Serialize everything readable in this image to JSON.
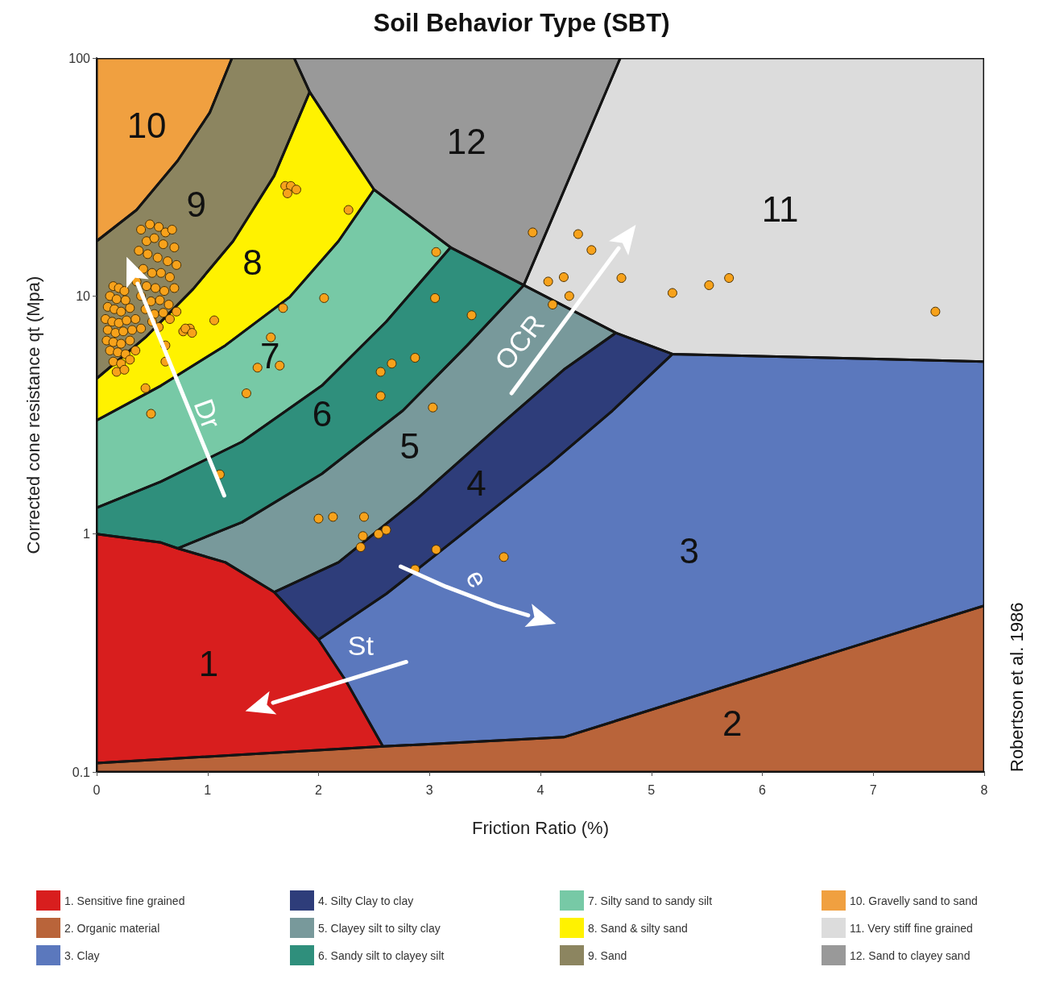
{
  "chart_data": {
    "type": "scatter",
    "title": "Soil Behavior Type (SBT)",
    "xlabel": "Friction Ratio (%)",
    "ylabel": "Corrected cone resistance qt (Mpa)",
    "xlim": [
      0,
      8
    ],
    "xticks": [
      0,
      1,
      2,
      3,
      4,
      5,
      6,
      7,
      8
    ],
    "ylim": [
      0.1,
      100
    ],
    "yticks": [
      0.1,
      1,
      10,
      100
    ],
    "log": "y",
    "grid": false,
    "legend": "bottom",
    "series": [
      {
        "name": "1. Sensitive fine grained",
        "type": "area",
        "color": "#d81e1e",
        "x": [
          0,
          0.58,
          0.73,
          1.16,
          1.6,
          2.0,
          2.25,
          2.58,
          0
        ],
        "values": [
          1,
          0.92,
          0.87,
          0.76,
          0.57,
          0.36,
          0.24,
          0.128,
          0.109
        ]
      },
      {
        "name": "2. Organic material",
        "type": "area",
        "color": "#b9643a",
        "x": [
          0,
          2.58,
          4.21,
          8,
          8,
          0
        ],
        "values": [
          0.109,
          0.128,
          0.14,
          0.5,
          0.1,
          0.1
        ]
      },
      {
        "name": "3. Clay",
        "type": "area",
        "color": "#5b78bd",
        "x": [
          2.0,
          2.61,
          3.34,
          4.07,
          4.65,
          5.19,
          8,
          8,
          4.21,
          2.58,
          2.25
        ],
        "values": [
          0.36,
          0.56,
          1.04,
          1.94,
          3.3,
          5.7,
          5.3,
          0.5,
          0.14,
          0.128,
          0.24
        ]
      },
      {
        "name": "4. Silty Clay to clay",
        "type": "area",
        "color": "#2e3d7a",
        "x": [
          1.6,
          2.18,
          2.9,
          3.63,
          4.21,
          4.68,
          5.19,
          4.65,
          4.07,
          3.34,
          2.61,
          2.0
        ],
        "values": [
          0.57,
          0.76,
          1.42,
          2.85,
          4.9,
          7.0,
          5.7,
          3.3,
          1.94,
          1.04,
          0.56,
          0.36
        ]
      },
      {
        "name": "5. Clayey silt to silty clay",
        "type": "area",
        "color": "#78999b",
        "x": [
          0.73,
          1.31,
          2.03,
          2.76,
          3.34,
          3.85,
          4.68,
          4.21,
          3.63,
          2.9,
          2.18,
          1.6,
          1.16
        ],
        "values": [
          0.87,
          1.12,
          1.79,
          3.3,
          6.2,
          11.1,
          7.0,
          4.9,
          2.85,
          1.42,
          0.76,
          0.57,
          0.76
        ]
      },
      {
        "name": "6. Sandy silt to clayey silt",
        "type": "area",
        "color": "#2f8f7c",
        "x": [
          0,
          0.58,
          1.31,
          2.03,
          2.61,
          3.19,
          3.85,
          3.34,
          2.76,
          2.03,
          1.31,
          0.73,
          0.58,
          0
        ],
        "values": [
          1.29,
          1.66,
          2.44,
          4.2,
          7.8,
          16,
          11.1,
          6.2,
          3.3,
          1.79,
          1.12,
          0.87,
          0.92,
          1
        ]
      },
      {
        "name": "7. Silty sand to sandy silt",
        "type": "area",
        "color": "#77c9a6",
        "x": [
          0,
          0.58,
          1.16,
          1.74,
          2.18,
          2.5,
          3.19,
          2.61,
          2.03,
          1.31,
          0.58,
          0
        ],
        "values": [
          3.0,
          4.2,
          6.2,
          9.9,
          17,
          28,
          16,
          7.8,
          4.2,
          2.44,
          1.66,
          1.29
        ]
      },
      {
        "name": "8. Sand & silty sand",
        "type": "area",
        "color": "#fff200",
        "x": [
          0,
          0.44,
          0.87,
          1.23,
          1.6,
          1.92,
          2.18,
          2.5,
          2.18,
          1.74,
          1.16,
          0.58,
          0
        ],
        "values": [
          4.5,
          6.7,
          10.7,
          17,
          32,
          72,
          47,
          28,
          17,
          9.9,
          6.2,
          4.2,
          3.0
        ]
      },
      {
        "name": "9. Sand",
        "type": "area",
        "color": "#8c8560",
        "x": [
          0,
          0.36,
          0.73,
          1.02,
          1.22,
          1.78,
          1.92,
          1.6,
          1.23,
          0.87,
          0.44,
          0
        ],
        "values": [
          17,
          23,
          37,
          59,
          100,
          100,
          72,
          32,
          17,
          10.7,
          6.7,
          4.5
        ]
      },
      {
        "name": "10. Gravelly sand to sand",
        "type": "area",
        "color": "#f0a040",
        "x": [
          0,
          1.22,
          1.02,
          0.73,
          0.36,
          0
        ],
        "values": [
          100,
          100,
          59,
          37,
          23,
          17
        ]
      },
      {
        "name": "11. Very stiff fine grained",
        "type": "area",
        "color": "#dcdcdc",
        "x": [
          4.72,
          8,
          8,
          5.19,
          4.68,
          3.85
        ],
        "values": [
          100,
          100,
          5.3,
          5.7,
          7.0,
          11.1
        ]
      },
      {
        "name": "12. Sand to clayey sand",
        "type": "area",
        "color": "#999999",
        "x": [
          1.78,
          4.72,
          3.85,
          3.19,
          2.5,
          2.18,
          1.92
        ],
        "values": [
          100,
          100,
          11.1,
          16,
          28,
          47,
          72
        ]
      },
      {
        "color": "#f7a21b",
        "marker": "circle",
        "x": [
          1.7,
          1.75,
          1.8,
          1.72,
          2.27,
          3.06,
          3.05,
          3.38,
          2.05,
          1.68,
          1.06,
          1.57,
          1.65,
          1.45,
          1.35,
          2.56,
          2.66,
          2.87,
          2.56,
          3.03,
          1.11,
          0.49,
          0.44,
          0.84,
          0.78,
          0.62,
          0.62,
          2.0,
          2.13,
          2.41,
          2.4,
          2.54,
          2.61,
          2.38,
          2.87,
          3.06,
          3.67,
          3.93,
          4.34,
          4.46,
          4.07,
          4.21,
          4.11,
          4.26,
          4.73,
          5.19,
          5.52,
          5.7,
          7.56,
          0.4,
          0.48,
          0.56,
          0.62,
          0.68,
          0.45,
          0.52,
          0.6,
          0.7,
          0.38,
          0.46,
          0.55,
          0.64,
          0.72,
          0.42,
          0.5,
          0.58,
          0.66,
          0.36,
          0.45,
          0.53,
          0.61,
          0.7,
          0.4,
          0.49,
          0.57,
          0.65,
          0.44,
          0.52,
          0.6,
          0.72,
          0.8,
          0.86,
          0.5,
          0.66,
          0.56,
          0.15,
          0.2,
          0.25,
          0.12,
          0.18,
          0.26,
          0.1,
          0.16,
          0.22,
          0.3,
          0.08,
          0.14,
          0.2,
          0.27,
          0.35,
          0.1,
          0.17,
          0.24,
          0.32,
          0.4,
          0.09,
          0.15,
          0.22,
          0.3,
          0.12,
          0.19,
          0.26,
          0.35,
          0.15,
          0.22,
          0.3,
          0.18,
          0.25
        ],
        "values": [
          29,
          29,
          28,
          27,
          23,
          15.3,
          9.8,
          8.3,
          9.8,
          8.9,
          7.9,
          6.7,
          5.1,
          5.0,
          3.9,
          4.8,
          5.2,
          5.5,
          3.8,
          3.4,
          1.78,
          3.2,
          4.1,
          7.3,
          7.1,
          6.2,
          5.3,
          1.16,
          1.18,
          1.18,
          0.98,
          1.0,
          1.04,
          0.88,
          0.71,
          0.86,
          0.8,
          18.5,
          18.2,
          15.6,
          11.5,
          12,
          9.2,
          10,
          11.9,
          10.3,
          11.1,
          11.9,
          8.6,
          19,
          20,
          19.5,
          18.5,
          19,
          17,
          17.5,
          16.5,
          16,
          15.5,
          15,
          14.5,
          14,
          13.5,
          13,
          12.5,
          12.5,
          12,
          11.5,
          11,
          10.8,
          10.5,
          10.8,
          10,
          9.5,
          9.6,
          9.2,
          8.8,
          8.4,
          8.5,
          8.6,
          7.3,
          7.0,
          7.8,
          8,
          7.4,
          11,
          10.8,
          10.5,
          10,
          9.7,
          9.6,
          9,
          8.8,
          8.6,
          8.9,
          8,
          7.8,
          7.7,
          7.9,
          8,
          7.2,
          7,
          7.1,
          7.2,
          7.3,
          6.5,
          6.4,
          6.3,
          6.5,
          5.9,
          5.8,
          5.7,
          5.9,
          5.3,
          5.2,
          5.4,
          4.8,
          4.9
        ]
      }
    ],
    "annotations": [
      "1",
      "2",
      "3",
      "4",
      "5",
      "6",
      "7",
      "8",
      "9",
      "10",
      "11",
      "12",
      "Dr",
      "OCR",
      "e",
      "St",
      "Robertson et al. 1986"
    ]
  }
}
